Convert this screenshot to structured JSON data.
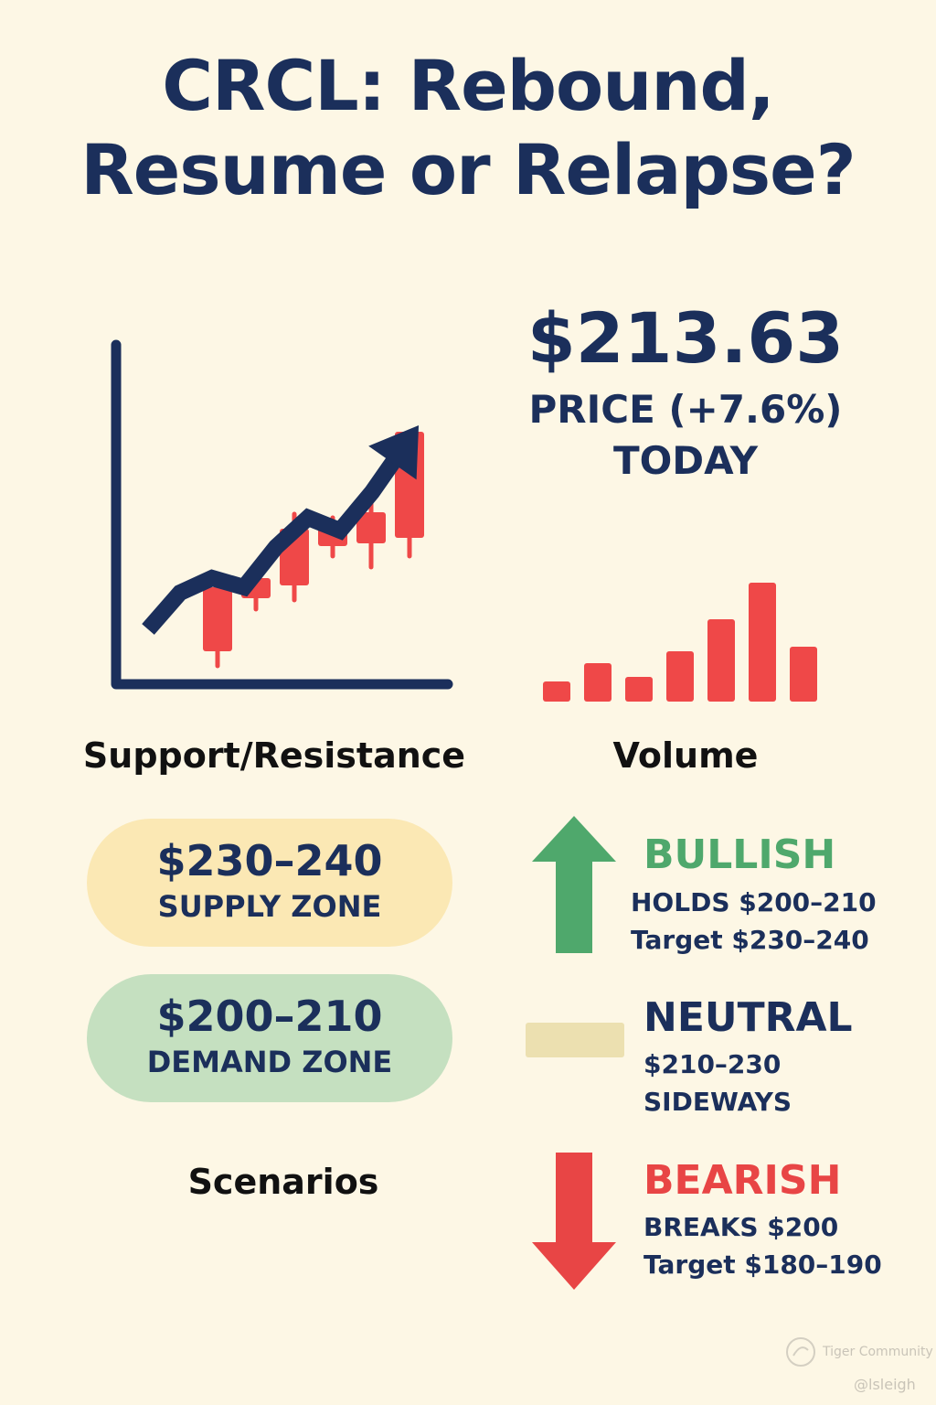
{
  "header": {
    "title_line1": "CRCL: Rebound,",
    "title_line2": "Resume or Relapse?"
  },
  "price_panel": {
    "price": "$213.63",
    "change_label": "PRICE (+7.6%)",
    "period": "TODAY"
  },
  "labels": {
    "support_resistance": "Support/Resistance",
    "volume": "Volume",
    "scenarios": "Scenarios"
  },
  "zones": {
    "supply": {
      "range": "$230–240",
      "label": "SUPPLY ZONE",
      "color": "#fbe8b4"
    },
    "demand": {
      "range": "$200–210",
      "label": "DEMAND ZONE",
      "color": "#c5e0c0"
    }
  },
  "scenarios": {
    "bullish": {
      "heading": "BULLISH",
      "line1": "HOLDS $200–210",
      "line2": "Target $230–240",
      "color": "#4fa86c"
    },
    "neutral": {
      "heading": "NEUTRAL",
      "line1": "$210–230",
      "line2": "SIDEWAYS",
      "color": "#1b2f5b",
      "bar_color": "#ece0b0"
    },
    "bearish": {
      "heading": "BEARISH",
      "line1": "BREAKS $200",
      "line2": "Target $180–190",
      "color": "#e84545"
    }
  },
  "colors": {
    "navy": "#1b2f5b",
    "candle_red": "#ef4848",
    "background": "#fdf7e5"
  },
  "watermark": {
    "brand": "Tiger Community",
    "handle": "@lsleigh"
  },
  "chart_data": [
    {
      "type": "candlestick",
      "title": "",
      "candles": [
        {
          "open": 36,
          "close": 106,
          "high": 120,
          "low": 20
        },
        {
          "open": 94,
          "close": 116,
          "high": 126,
          "low": 82
        },
        {
          "open": 108,
          "close": 170,
          "high": 186,
          "low": 92
        },
        {
          "open": 151,
          "close": 171,
          "high": 182,
          "low": 140
        },
        {
          "open": 154,
          "close": 188,
          "high": 198,
          "low": 128
        },
        {
          "open": 160,
          "close": 276,
          "high": 276,
          "low": 140
        }
      ],
      "trend_line": [
        60,
        100,
        116,
        106,
        150,
        182,
        168,
        210,
        260
      ],
      "ylim": [
        0,
        370
      ]
    },
    {
      "type": "bar",
      "title": "",
      "values": [
        22,
        42,
        27,
        55,
        90,
        130,
        60
      ],
      "ylim": [
        0,
        130
      ]
    }
  ]
}
